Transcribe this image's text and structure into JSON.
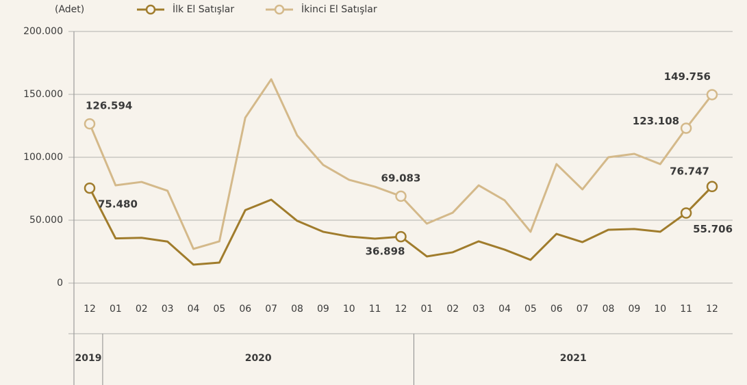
{
  "chart_data": {
    "type": "line",
    "y_label": "(Adet)",
    "categories": [
      "12",
      "01",
      "02",
      "03",
      "04",
      "05",
      "06",
      "07",
      "08",
      "09",
      "10",
      "11",
      "12",
      "01",
      "02",
      "03",
      "04",
      "05",
      "06",
      "07",
      "08",
      "09",
      "10",
      "11",
      "12"
    ],
    "year_labels": [
      "2019",
      "2020",
      "2021"
    ],
    "ylim": [
      0,
      200000
    ],
    "yticks": [
      0,
      {
        "value": 50000,
        "label": "50.000"
      },
      {
        "value": 100000,
        "label": "100.000"
      },
      {
        "value": 150000,
        "label": "150.000"
      },
      {
        "value": 200000,
        "label": "200.000"
      }
    ],
    "grid": true,
    "legend": "top",
    "series": [
      {
        "name": "İlk El Satışlar",
        "color": "#a07c2c",
        "values": [
          75480,
          35500,
          36000,
          33000,
          14700,
          16300,
          58000,
          66300,
          49500,
          40800,
          37000,
          35300,
          36898,
          21200,
          24500,
          33200,
          26600,
          18500,
          39100,
          32600,
          42400,
          43000,
          40800,
          55706,
          76747
        ],
        "value_labels": [
          "75.480",
          null,
          null,
          null,
          null,
          null,
          null,
          null,
          null,
          null,
          null,
          null,
          "36.898",
          null,
          null,
          null,
          null,
          null,
          null,
          null,
          null,
          null,
          null,
          "55.706",
          "76.747"
        ]
      },
      {
        "name": "İkinci El Satışlar",
        "color": "#d4b98a",
        "values": [
          126594,
          77700,
          80400,
          73400,
          27200,
          33200,
          131500,
          162000,
          117400,
          94000,
          82100,
          76600,
          69083,
          47300,
          56000,
          77700,
          65800,
          40800,
          94600,
          74500,
          100000,
          102700,
          94600,
          123108,
          149756
        ],
        "value_labels": [
          "126.594",
          null,
          null,
          null,
          null,
          null,
          null,
          null,
          null,
          null,
          null,
          null,
          "69.083",
          null,
          null,
          null,
          null,
          null,
          null,
          null,
          null,
          null,
          null,
          "123.108",
          "149.756"
        ]
      }
    ]
  }
}
